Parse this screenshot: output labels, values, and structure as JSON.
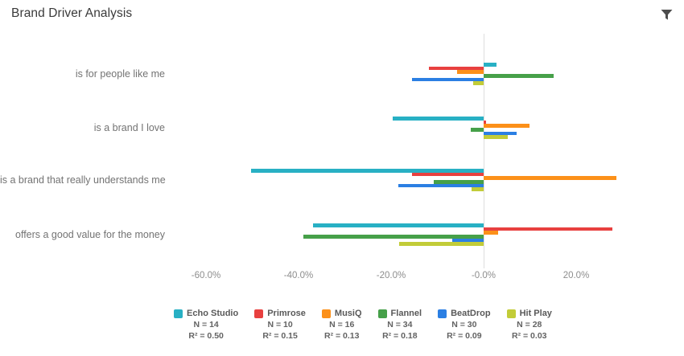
{
  "header": {
    "title": "Brand Driver Analysis"
  },
  "toolbar": {
    "filter_icon": "funnel"
  },
  "chart_data": {
    "type": "bar",
    "orientation": "horizontal",
    "title": "Brand Driver Analysis",
    "categories": [
      "is for people like me",
      "is a brand I love",
      "is a brand that really understands me",
      "offers a good value for the money"
    ],
    "series": [
      {
        "name": "Echo Studio",
        "color": "#28b0c4",
        "n_label": "N = 14",
        "r2_label": "R² = 0.50",
        "r2_value": 0.5,
        "n": 14,
        "values": [
          2.7,
          -19.6,
          -50.3,
          -36.8
        ]
      },
      {
        "name": "Primrose",
        "color": "#e8403f",
        "n_label": "N = 10",
        "r2_label": "R² = 0.15",
        "r2_value": 0.15,
        "n": 10,
        "values": [
          -11.9,
          0.5,
          -15.5,
          27.8
        ]
      },
      {
        "name": "MusiQ",
        "color": "#fc9019",
        "n_label": "N = 16",
        "r2_label": "R² = 0.13",
        "r2_value": 0.13,
        "n": 16,
        "values": [
          -5.8,
          9.9,
          28.7,
          3.1
        ]
      },
      {
        "name": "Flannel",
        "color": "#46a049",
        "n_label": "N = 34",
        "r2_label": "R² = 0.18",
        "r2_value": 0.18,
        "n": 34,
        "values": [
          15.2,
          -2.7,
          -10.8,
          -39.0
        ]
      },
      {
        "name": "BeatDrop",
        "color": "#2b7fe3",
        "n_label": "N = 30",
        "r2_label": "R² = 0.09",
        "r2_value": 0.09,
        "n": 30,
        "values": [
          -15.5,
          7.1,
          -18.4,
          -6.7
        ]
      },
      {
        "name": "Hit Play",
        "color": "#c2cc38",
        "n_label": "N = 28",
        "r2_label": "R² = 0.03",
        "r2_value": 0.03,
        "n": 28,
        "values": [
          -2.2,
          5.2,
          -2.6,
          -18.3
        ]
      }
    ],
    "x_ticks": [
      {
        "value": -60,
        "label": "-60.0%"
      },
      {
        "value": -40,
        "label": "-40.0%"
      },
      {
        "value": -20,
        "label": "-20.0%"
      },
      {
        "value": 0,
        "label": "-0.0%"
      },
      {
        "value": 20,
        "label": "20.0%"
      }
    ],
    "xlim": [
      -70,
      40
    ],
    "xlabel": "",
    "ylabel": "",
    "grid": "zero-line-only",
    "legend_position": "bottom"
  },
  "accent_colors": {
    "title_text": "#3a3a3a",
    "category_text": "#737373",
    "axis_text": "#8d8d8d",
    "zero_line": "#dedede",
    "filter_icon": "#4d4d4d"
  }
}
